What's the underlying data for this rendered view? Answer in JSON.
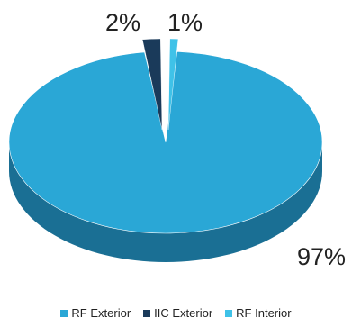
{
  "chart_data": {
    "type": "pie",
    "style": "3d",
    "title": "",
    "labels": [
      "RF Exterior",
      "IIC Exterior",
      "RF Interior"
    ],
    "values": [
      97,
      2,
      1
    ],
    "value_labels": [
      "97%",
      "2%",
      "1%"
    ],
    "colors": [
      "#2aa7d6",
      "#1a3a5a",
      "#3fc2e8"
    ],
    "side_colors": [
      "#1a6f94",
      "#0f2740",
      "#2a90b3"
    ],
    "legend_position": "bottom"
  }
}
